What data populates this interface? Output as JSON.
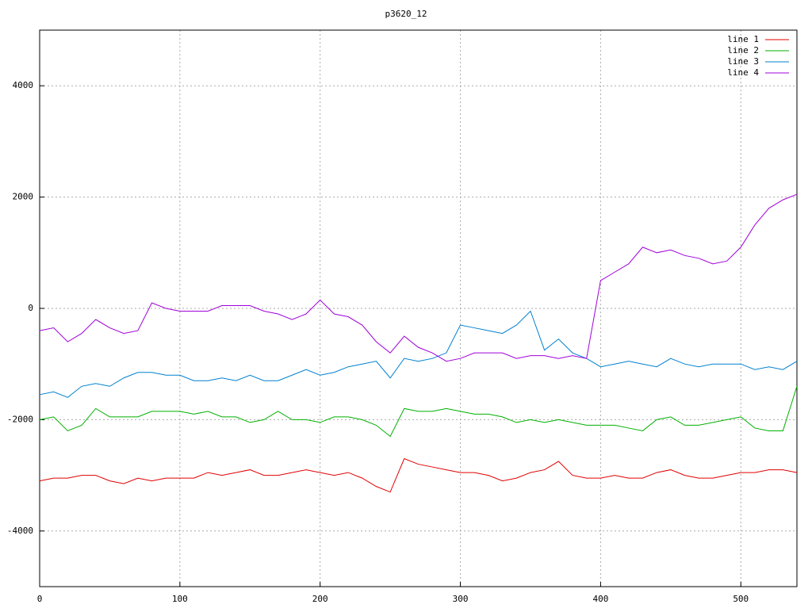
{
  "chart_data": {
    "type": "line",
    "title": "p3620_12",
    "x": [
      0,
      10,
      20,
      30,
      40,
      50,
      60,
      70,
      80,
      90,
      100,
      110,
      120,
      130,
      140,
      150,
      160,
      170,
      180,
      190,
      200,
      210,
      220,
      230,
      240,
      250,
      260,
      270,
      280,
      290,
      300,
      310,
      320,
      330,
      340,
      350,
      360,
      370,
      380,
      390,
      400,
      410,
      420,
      430,
      440,
      450,
      460,
      470,
      480,
      490,
      500,
      510,
      520,
      530,
      540
    ],
    "series": [
      {
        "name": "line 1",
        "color": "#e00000",
        "values": [
          -3100,
          -3050,
          -3050,
          -3000,
          -3000,
          -3100,
          -3150,
          -3050,
          -3100,
          -3050,
          -3050,
          -3050,
          -2950,
          -3000,
          -2950,
          -2900,
          -3000,
          -3000,
          -2950,
          -2900,
          -2950,
          -3000,
          -2950,
          -3050,
          -3200,
          -3300,
          -2700,
          -2800,
          -2850,
          -2900,
          -2950,
          -2950,
          -3000,
          -3100,
          -3050,
          -2950,
          -2900,
          -2750,
          -3000,
          -3050,
          -3050,
          -3000,
          -3050,
          -3050,
          -2950,
          -2900,
          -3000,
          -3050,
          -3050,
          -3000,
          -2950,
          -2950,
          -2900,
          -2900,
          -2950
        ]
      },
      {
        "name": "line 2",
        "color": "#00b000",
        "values": [
          -2000,
          -1950,
          -2200,
          -2100,
          -1800,
          -1950,
          -1950,
          -1950,
          -1850,
          -1850,
          -1850,
          -1900,
          -1850,
          -1950,
          -1950,
          -2050,
          -2000,
          -1850,
          -2000,
          -2000,
          -2050,
          -1950,
          -1950,
          -2000,
          -2100,
          -2300,
          -1800,
          -1850,
          -1850,
          -1800,
          -1850,
          -1900,
          -1900,
          -1950,
          -2050,
          -2000,
          -2050,
          -2000,
          -2050,
          -2100,
          -2100,
          -2100,
          -2150,
          -2200,
          -2000,
          -1950,
          -2100,
          -2100,
          -2050,
          -2000,
          -1950,
          -2150,
          -2200,
          -2200,
          -1400
        ]
      },
      {
        "name": "line 3",
        "color": "#0080d0",
        "values": [
          -1550,
          -1500,
          -1600,
          -1400,
          -1350,
          -1400,
          -1250,
          -1150,
          -1150,
          -1200,
          -1200,
          -1300,
          -1300,
          -1250,
          -1300,
          -1200,
          -1300,
          -1300,
          -1200,
          -1100,
          -1200,
          -1150,
          -1050,
          -1000,
          -950,
          -1250,
          -900,
          -950,
          -900,
          -800,
          -300,
          -350,
          -400,
          -450,
          -300,
          -50,
          -750,
          -550,
          -800,
          -900,
          -1050,
          -1000,
          -950,
          -1000,
          -1050,
          -900,
          -1000,
          -1050,
          -1000,
          -1000,
          -1000,
          -1100,
          -1050,
          -1100,
          -950
        ]
      },
      {
        "name": "line 4",
        "color": "#a000d8",
        "values": [
          -400,
          -350,
          -600,
          -450,
          -200,
          -350,
          -450,
          -400,
          100,
          0,
          -50,
          -50,
          -50,
          50,
          50,
          50,
          -50,
          -100,
          -200,
          -100,
          150,
          -100,
          -150,
          -300,
          -600,
          -800,
          -500,
          -700,
          -800,
          -950,
          -900,
          -800,
          -800,
          -800,
          -900,
          -850,
          -850,
          -900,
          -850,
          -900,
          500,
          650,
          800,
          1100,
          1000,
          1050,
          950,
          900,
          800,
          850,
          1100,
          1500,
          1800,
          1950,
          2050
        ]
      }
    ],
    "xlim": [
      0,
      540
    ],
    "xticks": [
      0,
      100,
      200,
      300,
      400,
      500
    ],
    "ylim": [
      -5000,
      5000
    ],
    "yticks": [
      -4000,
      -2000,
      0,
      2000,
      4000
    ],
    "grid": true,
    "legend": "top-right"
  }
}
